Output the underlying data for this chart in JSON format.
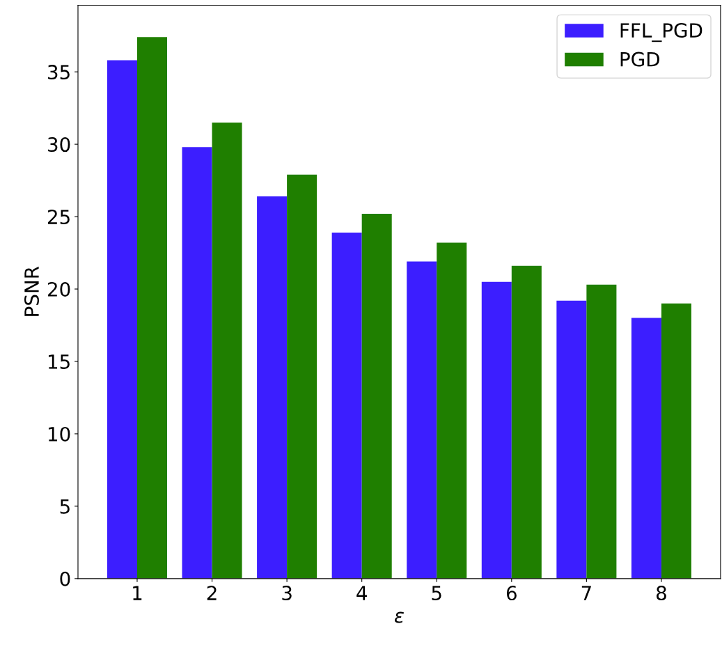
{
  "chart_data": {
    "type": "bar",
    "xlabel": "ε",
    "ylabel": "PSNR",
    "categories": [
      "1",
      "2",
      "3",
      "4",
      "5",
      "6",
      "7",
      "8"
    ],
    "series": [
      {
        "name": "FFL_PGD",
        "color": "#3c1eff",
        "values": [
          35.8,
          29.8,
          26.4,
          23.9,
          21.9,
          20.5,
          19.2,
          18.0
        ]
      },
      {
        "name": "PGD",
        "color": "#1f7f00",
        "values": [
          37.4,
          31.5,
          27.9,
          25.2,
          23.2,
          21.6,
          20.3,
          19.0
        ]
      }
    ],
    "ylim": [
      0,
      39.6
    ],
    "yticks": [
      0,
      5,
      10,
      15,
      20,
      25,
      30,
      35
    ],
    "grid": false,
    "legend": "top right"
  }
}
